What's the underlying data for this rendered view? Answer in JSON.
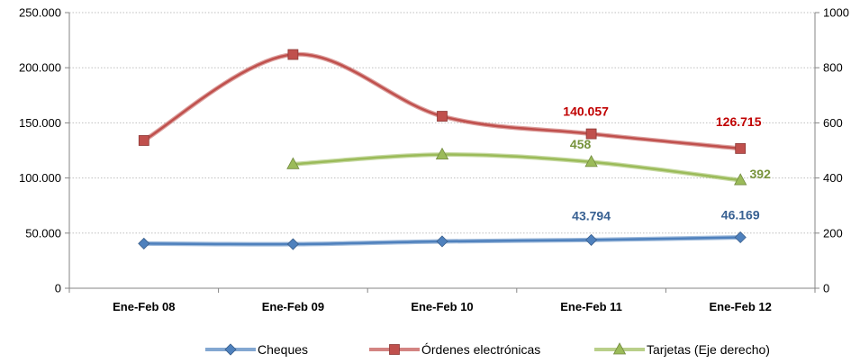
{
  "chart_data": {
    "type": "line",
    "categories": [
      "Ene-Feb 08",
      "Ene-Feb 09",
      "Ene-Feb 10",
      "Ene-Feb 11",
      "Ene-Feb 12"
    ],
    "y_left": {
      "lim": [
        0,
        250000
      ],
      "ticks": [
        "0",
        "50.000",
        "100.000",
        "150.000",
        "200.000",
        "250.000"
      ]
    },
    "y_right": {
      "lim": [
        0,
        1000
      ],
      "ticks": [
        "0",
        "200",
        "400",
        "600",
        "800",
        "1000"
      ]
    },
    "grid": true,
    "legend_position": "bottom",
    "series": [
      {
        "name": "Cheques",
        "axis": "left",
        "marker": "diamond",
        "color": "#4F81BD",
        "values": [
          40500,
          40000,
          42500,
          43794,
          46169
        ],
        "labels": [
          null,
          null,
          null,
          "43.794",
          "46.169"
        ],
        "label_color": "#376092"
      },
      {
        "name": "Órdenes electrónicas",
        "axis": "left",
        "marker": "square",
        "color": "#C0504D",
        "values": [
          134000,
          212000,
          156000,
          140057,
          126715
        ],
        "labels": [
          null,
          null,
          null,
          "140.057",
          "126.715"
        ],
        "label_color": "#C00000"
      },
      {
        "name": "Tarjetas (Eje derecho)",
        "axis": "right",
        "marker": "triangle",
        "color": "#9BBB59",
        "values": [
          null,
          450,
          485,
          458,
          392
        ],
        "labels": [
          null,
          null,
          null,
          "458",
          "392"
        ],
        "label_color": "#77933C"
      }
    ]
  }
}
